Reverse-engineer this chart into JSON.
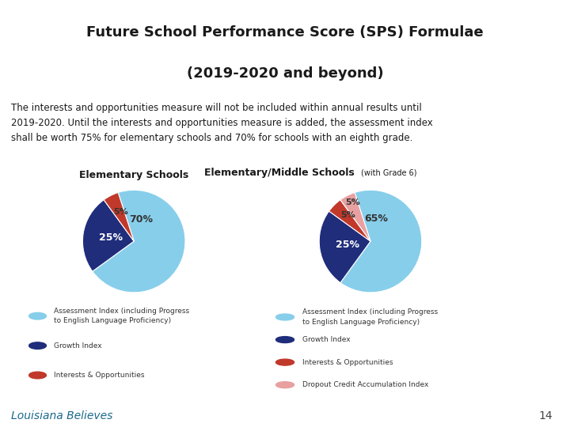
{
  "title_line1": "Future School Performance Score (SPS) Formulae",
  "title_line2": "(2019-2020 and beyond)",
  "body_text": "The interests and opportunities measure will not be included within annual results until\n2019-2020. Until the interests and opportunities measure is added, the assessment index\nshall be worth 75% for elementary schools and 70% for schools with an eighth grade.",
  "pie1_title": "Elementary Schools",
  "pie1_values": [
    70,
    25,
    5
  ],
  "pie1_colors": [
    "#87CEEB",
    "#1F2D7B",
    "#C0392B"
  ],
  "pie1_startangle": 108,
  "pie2_title": "Elementary/Middle Schools",
  "pie2_subtitle": "(with Grade 6)",
  "pie2_values": [
    65,
    25,
    5,
    5
  ],
  "pie2_colors": [
    "#87CEEB",
    "#1F2D7B",
    "#C0392B",
    "#E8A0A0"
  ],
  "pie2_startangle": 108,
  "legend1_items": [
    [
      "#87CEEB",
      "Assessment Index (including Progress\nto English Language Proficiency)"
    ],
    [
      "#1F2D7B",
      "Growth Index"
    ],
    [
      "#C0392B",
      "Interests & Opportunities"
    ]
  ],
  "legend2_items": [
    [
      "#87CEEB",
      "Assessment Index (including Progress\nto English Language Proficiency)"
    ],
    [
      "#1F2D7B",
      "Growth Index"
    ],
    [
      "#C0392B",
      "Interests & Opportunities"
    ],
    [
      "#E8A0A0",
      "Dropout Credit Accumulation Index"
    ]
  ],
  "footer_text": "Louisiana Believes",
  "page_number": "14",
  "bg_color": "#FFFFFF",
  "header_bg_color": "#B8D8E8",
  "title_color": "#1a1a1a",
  "body_color": "#1a1a1a",
  "footer_line_color": "#4FA8C8",
  "footer_text_color": "#1a6a8a"
}
